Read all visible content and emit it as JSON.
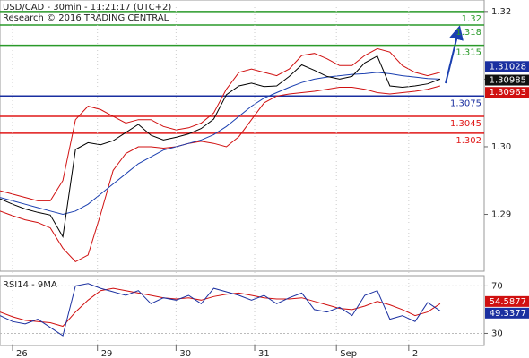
{
  "chart_data": [
    {
      "type": "line",
      "title": "USD/CAD - 30min - 11:21:17 (UTC+2)",
      "subtitle": "Research © 2016 TRADING CENTRAL",
      "x": [
        0,
        4,
        8,
        12,
        16,
        20,
        24,
        28,
        32,
        36,
        40,
        44,
        48,
        52,
        56,
        60,
        64,
        68,
        72,
        76,
        80,
        84,
        88,
        92,
        96,
        100,
        104,
        108,
        112,
        116,
        120,
        124,
        128,
        132,
        136,
        140
      ],
      "xlim": [
        0,
        154
      ],
      "ylim": [
        1.2816,
        1.3217
      ],
      "yticks": [
        1.32,
        1.31,
        {
          "value": 1.3,
          "label": "1.30"
        },
        1.29
      ],
      "series": [
        {
          "color": "#d01010",
          "values": [
            1.2935,
            1.293,
            1.2925,
            1.292,
            1.292,
            1.295,
            1.304,
            1.306,
            1.3055,
            1.3045,
            1.3035,
            1.304,
            1.304,
            1.303,
            1.3025,
            1.3028,
            1.3035,
            1.305,
            1.3085,
            1.311,
            1.3115,
            1.311,
            1.3105,
            1.3115,
            1.3135,
            1.3138,
            1.313,
            1.312,
            1.312,
            1.3135,
            1.3145,
            1.314,
            1.312,
            1.311,
            1.3105,
            1.311
          ]
        },
        {
          "color": "#d01010",
          "values": [
            1.2905,
            1.2898,
            1.2892,
            1.2888,
            1.288,
            1.285,
            1.283,
            1.284,
            1.29,
            1.2965,
            1.299,
            1.3,
            1.3,
            1.2998,
            1.3,
            1.3005,
            1.3008,
            1.3005,
            1.3,
            1.3015,
            1.304,
            1.3065,
            1.3075,
            1.3078,
            1.308,
            1.3082,
            1.3085,
            1.3088,
            1.3088,
            1.3085,
            1.308,
            1.3078,
            1.308,
            1.3082,
            1.3085,
            1.309
          ]
        },
        {
          "color": "#1a3fb0",
          "values": [
            1.2925,
            1.292,
            1.2915,
            1.291,
            1.2905,
            1.29,
            1.2905,
            1.2915,
            1.293,
            1.2945,
            1.296,
            1.2975,
            1.2985,
            1.2995,
            1.3,
            1.3005,
            1.301,
            1.3018,
            1.303,
            1.3045,
            1.306,
            1.3072,
            1.308,
            1.3088,
            1.3095,
            1.31,
            1.3103,
            1.3105,
            1.3107,
            1.3108,
            1.311,
            1.3108,
            1.3105,
            1.3103,
            1.3101,
            1.31
          ]
        },
        {
          "color": "#000000",
          "values": [
            1.2923,
            1.2915,
            1.2908,
            1.2903,
            1.2899,
            1.2867,
            1.2996,
            1.3006,
            1.3003,
            1.3009,
            1.3021,
            1.3033,
            1.3017,
            1.301,
            1.3014,
            1.3019,
            1.3027,
            1.3041,
            1.3077,
            1.309,
            1.3094,
            1.3089,
            1.309,
            1.3104,
            1.3121,
            1.3113,
            1.3104,
            1.31,
            1.3104,
            1.3124,
            1.3134,
            1.309,
            1.3088,
            1.309,
            1.3093,
            1.31
          ]
        }
      ],
      "levels": [
        {
          "value": 1.32,
          "color": "#2a9a2a"
        },
        {
          "value": 1.318,
          "color": "#2a9a2a"
        },
        {
          "value": 1.315,
          "color": "#2a9a2a"
        },
        {
          "value": 1.3075,
          "color": "#1a2fa0"
        },
        {
          "value": 1.3045,
          "color": "#e01818"
        },
        {
          "value": 1.302,
          "color": "#e01818"
        }
      ],
      "price_tags": [
        {
          "value": 1.31028,
          "color": "#1a2fa0"
        },
        {
          "value": 1.30985,
          "color": "#111111"
        },
        {
          "value": 1.30963,
          "color": "#d01010"
        }
      ]
    },
    {
      "type": "line",
      "title": "RSI14 - 9MA",
      "x": [
        0,
        4,
        8,
        12,
        16,
        20,
        24,
        28,
        32,
        36,
        40,
        44,
        48,
        52,
        56,
        60,
        64,
        68,
        72,
        76,
        80,
        84,
        88,
        92,
        96,
        100,
        104,
        108,
        112,
        116,
        120,
        124,
        128,
        132,
        136,
        140
      ],
      "xlim": [
        0,
        154
      ],
      "xticks": [
        {
          "value": 4,
          "label": "26"
        },
        {
          "value": 31,
          "label": "29"
        },
        {
          "value": 56,
          "label": "30"
        },
        {
          "value": 81,
          "label": "31"
        },
        {
          "value": 107,
          "label": "Sep"
        },
        {
          "value": 130,
          "label": "2"
        }
      ],
      "ylim": [
        19.8,
        78.6
      ],
      "yticks": [
        70,
        30
      ],
      "series": [
        {
          "color": "#d01010",
          "values": [
            48,
            44,
            41,
            40,
            39,
            36,
            48,
            58,
            66,
            68,
            66,
            64,
            62,
            60,
            59,
            60,
            58,
            61,
            63,
            64,
            62,
            60,
            59,
            59,
            60,
            57,
            54,
            51,
            50,
            53,
            57,
            54,
            50,
            45,
            48,
            55
          ]
        },
        {
          "color": "#1a2fa0",
          "values": [
            45,
            40,
            38,
            42,
            35,
            28,
            70,
            72,
            68,
            65,
            62,
            66,
            55,
            60,
            58,
            62,
            55,
            68,
            65,
            62,
            58,
            62,
            55,
            60,
            64,
            50,
            48,
            52,
            45,
            62,
            66,
            42,
            45,
            40,
            56,
            49
          ]
        }
      ],
      "price_tags": [
        {
          "value": 54.5877,
          "color": "#d01010"
        },
        {
          "value": 49.3377,
          "color": "#1a2fa0"
        }
      ]
    }
  ]
}
